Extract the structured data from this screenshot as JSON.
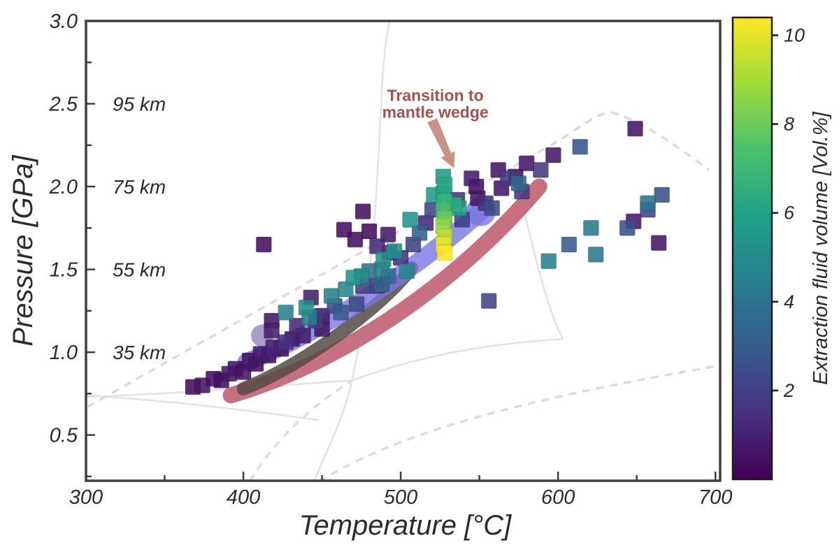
{
  "style": {
    "background": "#ffffff",
    "frame_color": "#3f3f3f",
    "tick_color": "#3f3f3f",
    "text_color": "#2b2b2b",
    "ref_solid_color": "#e2e2e2",
    "ref_dashed_color": "#dcdcdc",
    "colorbar_border": "#1a1a1a"
  },
  "chart_data": {
    "type": "scatter",
    "title": "",
    "xlabel": "Temperature [°C]",
    "ylabel": "Pressure [GPa]",
    "xlim": [
      300,
      703
    ],
    "ylim": [
      0.224,
      3.0
    ],
    "x_major_ticks": [
      300,
      400,
      500,
      600,
      700
    ],
    "x_minor_ticks": [
      350,
      450,
      550,
      650
    ],
    "y_major_ticks": [
      0.5,
      1.0,
      1.5,
      2.0,
      2.5,
      3.0
    ],
    "y_minor_ticks": [
      0.25,
      0.75,
      1.25,
      1.75,
      2.25,
      2.75
    ],
    "grid": false,
    "legend_position": "none",
    "depth_labels": [
      {
        "pressure": 2.5,
        "label": "95 km"
      },
      {
        "pressure": 2.0,
        "label": "75 km"
      },
      {
        "pressure": 1.5,
        "label": "55 km"
      },
      {
        "pressure": 1.0,
        "label": "35 km"
      }
    ],
    "annotation": {
      "line1": "Transition to",
      "line2": "mantle wedge",
      "text_color": "#a3534c",
      "arrow_color": "#c48b7c",
      "text_T": 522,
      "text_P1": 2.55,
      "text_P2": 2.45,
      "arrow_tail": [
        520,
        2.4
      ],
      "arrow_tip": [
        534,
        2.11
      ]
    },
    "colorbar": {
      "label": "Extraction fluid volume [Vol.%]",
      "range": [
        0,
        10.4
      ],
      "ticks": [
        2,
        4,
        6,
        8,
        10
      ],
      "colormap": "viridis"
    },
    "viridis_stops": [
      "#440154",
      "#46327e",
      "#365c8d",
      "#277f8e",
      "#1fa187",
      "#4ac16d",
      "#a0da39",
      "#fde725"
    ],
    "marker": {
      "shape": "square",
      "size": 22,
      "opacity": 0.88
    },
    "points": [
      [
        368,
        0.79,
        0.4
      ],
      [
        374,
        0.8,
        0.6
      ],
      [
        381,
        0.84,
        0.5
      ],
      [
        386,
        0.83,
        0.4
      ],
      [
        391,
        0.87,
        0.7
      ],
      [
        395,
        0.9,
        0.5
      ],
      [
        400,
        0.88,
        0.6
      ],
      [
        404,
        0.95,
        0.6
      ],
      [
        408,
        0.93,
        0.4
      ],
      [
        411,
        0.99,
        0.8
      ],
      [
        416,
        0.98,
        0.5
      ],
      [
        419,
        1.03,
        1.1
      ],
      [
        424,
        1.02,
        0.6
      ],
      [
        427,
        1.06,
        1.5
      ],
      [
        431,
        1.08,
        0.8
      ],
      [
        418,
        1.13,
        0.9
      ],
      [
        418,
        1.19,
        0.6
      ],
      [
        427,
        1.24,
        4.6
      ],
      [
        434,
        1.16,
        1.2
      ],
      [
        438,
        1.1,
        0.9
      ],
      [
        440,
        1.27,
        5.0
      ],
      [
        442,
        1.21,
        4.4
      ],
      [
        446,
        1.19,
        1.8
      ],
      [
        443,
        1.33,
        0.9
      ],
      [
        450,
        1.14,
        0.7
      ],
      [
        456,
        1.34,
        4.5
      ],
      [
        462,
        1.24,
        3.0
      ],
      [
        450,
        1.22,
        0.8
      ],
      [
        458,
        1.28,
        2.2
      ],
      [
        465,
        1.38,
        4.8
      ],
      [
        470,
        1.45,
        5.2
      ],
      [
        472,
        1.29,
        2.4
      ],
      [
        475,
        1.46,
        5.0
      ],
      [
        476,
        1.4,
        2.0
      ],
      [
        480,
        1.49,
        4.0
      ],
      [
        485,
        1.4,
        1.8
      ],
      [
        488,
        1.41,
        3.2
      ],
      [
        489,
        1.56,
        5.0
      ],
      [
        488,
        1.5,
        4.4
      ],
      [
        492,
        1.46,
        3.5
      ],
      [
        496,
        1.61,
        5.2
      ],
      [
        493,
        1.6,
        1.4
      ],
      [
        504,
        1.49,
        4.8
      ],
      [
        500,
        1.57,
        1.5
      ],
      [
        506,
        1.8,
        5.5
      ],
      [
        508,
        1.65,
        2.0
      ],
      [
        512,
        1.72,
        3.2
      ],
      [
        516,
        1.78,
        1.2
      ],
      [
        413,
        1.65,
        0.4
      ],
      [
        464,
        1.74,
        0.5
      ],
      [
        471,
        1.68,
        0.5
      ],
      [
        476,
        1.85,
        0.5
      ],
      [
        480,
        1.73,
        0.4
      ],
      [
        485,
        1.64,
        1.2
      ],
      [
        492,
        1.71,
        0.8
      ],
      [
        527,
        2.06,
        5.6
      ],
      [
        528,
        2.01,
        6.2
      ],
      [
        527,
        1.96,
        6.0
      ],
      [
        528,
        1.91,
        6.8
      ],
      [
        527,
        1.86,
        7.2
      ],
      [
        528,
        1.81,
        7.9
      ],
      [
        527,
        1.76,
        8.6
      ],
      [
        528,
        1.7,
        9.4
      ],
      [
        527,
        1.65,
        10.1
      ],
      [
        528,
        1.6,
        10.4
      ],
      [
        521,
        1.95,
        5.8
      ],
      [
        534,
        1.89,
        6.4
      ],
      [
        537,
        1.87,
        5.8
      ],
      [
        520,
        1.86,
        2.2
      ],
      [
        539,
        1.8,
        2.0
      ],
      [
        536,
        1.92,
        1.6
      ],
      [
        545,
        2.05,
        0.8
      ],
      [
        548,
        2.0,
        0.5
      ],
      [
        549,
        1.93,
        0.7
      ],
      [
        554,
        1.9,
        1.5
      ],
      [
        558,
        1.87,
        2.4
      ],
      [
        562,
        2.1,
        0.6
      ],
      [
        568,
        2.05,
        1.8
      ],
      [
        564,
        1.99,
        0.7
      ],
      [
        573,
        2.06,
        0.5
      ],
      [
        575,
        2.02,
        3.5
      ],
      [
        577,
        1.97,
        1.6
      ],
      [
        580,
        2.14,
        0.6
      ],
      [
        589,
        2.1,
        1.8
      ],
      [
        597,
        2.19,
        0.7
      ],
      [
        614,
        2.24,
        2.8
      ],
      [
        649,
        2.35,
        0.6
      ],
      [
        594,
        1.55,
        4.5
      ],
      [
        607,
        1.65,
        3.0
      ],
      [
        621,
        1.75,
        4.2
      ],
      [
        624,
        1.59,
        4.2
      ],
      [
        644,
        1.75,
        2.6
      ],
      [
        648,
        1.79,
        0.8
      ],
      [
        657,
        1.9,
        4.0
      ],
      [
        657,
        1.86,
        2.0
      ],
      [
        664,
        1.66,
        0.7
      ],
      [
        666,
        1.95,
        2.6
      ],
      [
        556,
        1.31,
        2.2
      ]
    ],
    "trend_bands": [
      {
        "name": "red-geotherm-band",
        "color": "#c4687b",
        "opacity": 0.95,
        "width": 23,
        "ctrl": [
          [
            392,
            0.74
          ],
          [
            454,
            0.91
          ],
          [
            530,
            1.35
          ],
          [
            588,
            2.0
          ]
        ]
      },
      {
        "name": "gray-geotherm-band",
        "color": "#544a47",
        "opacity": 0.85,
        "width": 19,
        "ctrl": [
          [
            400,
            0.78
          ],
          [
            436,
            0.91
          ],
          [
            488,
            1.27
          ],
          [
            507,
            1.51
          ]
        ]
      },
      {
        "name": "blue-geotherm-band",
        "color": "#7b74e3",
        "opacity": 0.8,
        "width": 26,
        "ctrl": [
          [
            402,
            0.94
          ],
          [
            450,
            1.12
          ],
          [
            512,
            1.52
          ],
          [
            551,
            1.85
          ]
        ],
        "end_cap_radius": 21
      },
      {
        "name": "lavender-blob",
        "color": "#9a8cc2",
        "opacity": 0.85,
        "blob": [
          412,
          1.1
        ],
        "blob_radius": 16
      }
    ],
    "reference_lines": [
      {
        "name": "facies-boundary-vertical",
        "dashed": false,
        "ctrl": [
          [
            493,
            3.0
          ],
          [
            484,
            2.66
          ],
          [
            490,
            1.73
          ],
          [
            469,
            0.83
          ],
          [
            464,
            0.61
          ],
          [
            452,
            0.38
          ],
          [
            445,
            0.224
          ]
        ]
      },
      {
        "name": "facies-boundary-low-right",
        "dashed": false,
        "ctrl": [
          [
            300,
            0.73
          ],
          [
            379,
            0.76
          ],
          [
            436,
            0.81
          ],
          [
            469,
            0.83
          ],
          [
            516,
            0.99
          ],
          [
            556,
            1.05
          ],
          [
            603,
            1.08
          ]
        ]
      },
      {
        "name": "facies-boundary-low-left",
        "dashed": false,
        "ctrl": [
          [
            300,
            0.74
          ],
          [
            348,
            0.71
          ],
          [
            396,
            0.66
          ],
          [
            448,
            0.59
          ]
        ]
      },
      {
        "name": "facies-boundary-steep",
        "dashed": false,
        "ctrl": [
          [
            575,
            1.98
          ],
          [
            584,
            1.65
          ],
          [
            591,
            1.31
          ],
          [
            603,
            1.08
          ]
        ]
      },
      {
        "name": "facies-boundary-dashed-main",
        "dashed": true,
        "ctrl": [
          [
            301,
            0.67
          ],
          [
            401,
            1.21
          ],
          [
            501,
            1.74
          ],
          [
            601,
            2.28
          ],
          [
            614,
            2.36
          ],
          [
            625,
            2.44
          ],
          [
            633,
            2.45
          ],
          [
            652,
            2.41
          ],
          [
            679,
            2.22
          ],
          [
            696,
            2.1
          ]
        ]
      },
      {
        "name": "facies-boundary-dashed-lower",
        "dashed": true,
        "ctrl": [
          [
            448,
            0.22
          ],
          [
            494,
            0.48
          ],
          [
            556,
            0.68
          ],
          [
            703,
            0.92
          ]
        ]
      },
      {
        "name": "facies-boundary-dashed-short",
        "dashed": true,
        "ctrl": [
          [
            404,
            0.22
          ],
          [
            423,
            0.51
          ],
          [
            445,
            0.68
          ],
          [
            469,
            0.83
          ]
        ]
      }
    ]
  }
}
